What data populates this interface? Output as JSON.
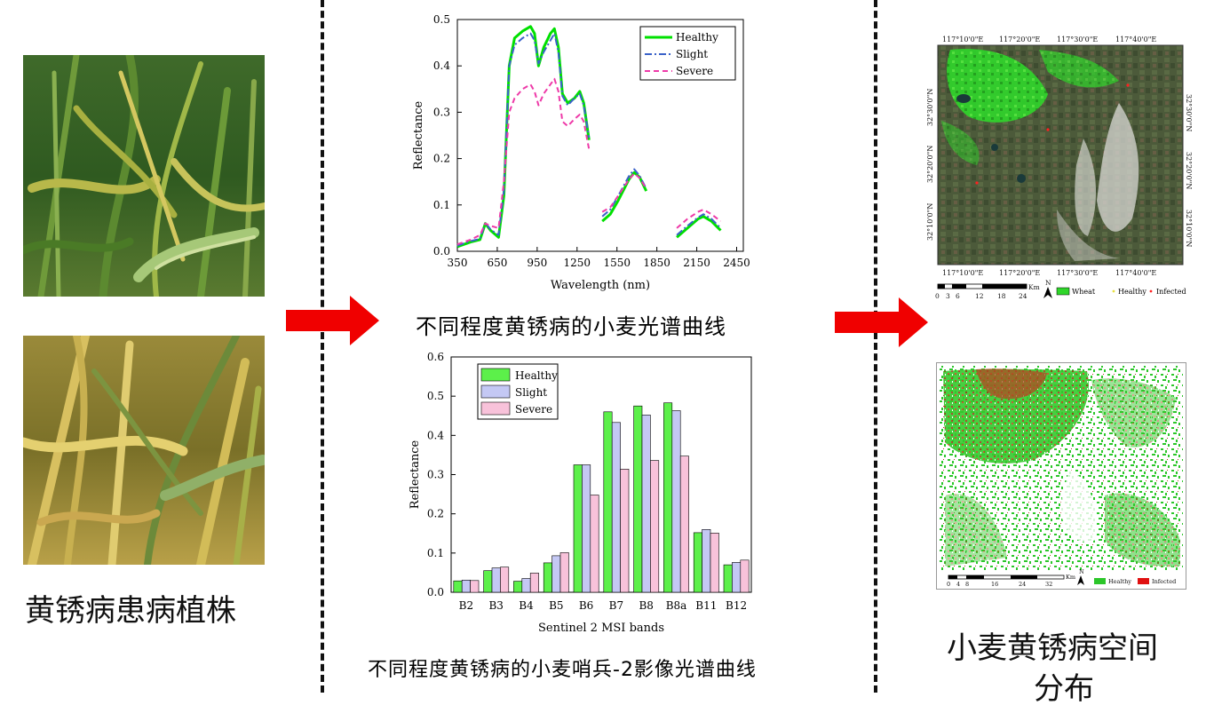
{
  "labels": {
    "left_caption": "黄锈病患病植株",
    "mid_top_caption": "不同程度黄锈病的小麦光谱曲线",
    "mid_bottom_caption": "不同程度黄锈病的小麦哨兵-2影像光谱曲线",
    "right_caption_line1": "小麦黄锈病空间",
    "right_caption_line2": "分布"
  },
  "colors": {
    "arrow": "#f00000",
    "healthy_line": "#00e000",
    "slight_line": "#3a62c9",
    "severe_line": "#ee3aa8",
    "healthy_bar": "#5cf04a",
    "slight_bar": "#c4c8f4",
    "severe_bar": "#f8c2da"
  },
  "chart_data": [
    {
      "type": "line",
      "xlabel": "Wavelength (nm)",
      "ylabel": "Reflectance",
      "xlim": [
        350,
        2500
      ],
      "ylim": [
        0.0,
        0.5
      ],
      "xticks": [
        "350",
        "650",
        "950",
        "1250",
        "1550",
        "1850",
        "2150",
        "2450"
      ],
      "yticks": [
        "0.0",
        "0.1",
        "0.2",
        "0.3",
        "0.4",
        "0.5"
      ],
      "legend_position": "top-right",
      "series": [
        {
          "name": "Healthy",
          "segments": [
            [
              [
                350,
                0.01
              ],
              [
                450,
                0.02
              ],
              [
                520,
                0.025
              ],
              [
                560,
                0.06
              ],
              [
                600,
                0.045
              ],
              [
                660,
                0.03
              ],
              [
                700,
                0.12
              ],
              [
                740,
                0.4
              ],
              [
                780,
                0.46
              ],
              [
                840,
                0.475
              ],
              [
                900,
                0.485
              ],
              [
                930,
                0.47
              ],
              [
                960,
                0.4
              ],
              [
                1000,
                0.44
              ],
              [
                1050,
                0.47
              ],
              [
                1080,
                0.48
              ],
              [
                1110,
                0.44
              ],
              [
                1140,
                0.34
              ],
              [
                1180,
                0.32
              ],
              [
                1230,
                0.33
              ],
              [
                1270,
                0.345
              ],
              [
                1300,
                0.32
              ],
              [
                1340,
                0.24
              ]
            ],
            [
              [
                1440,
                0.065
              ],
              [
                1500,
                0.08
              ],
              [
                1560,
                0.11
              ],
              [
                1640,
                0.155
              ],
              [
                1680,
                0.17
              ],
              [
                1720,
                0.16
              ],
              [
                1770,
                0.13
              ]
            ],
            [
              [
                2000,
                0.03
              ],
              [
                2080,
                0.05
              ],
              [
                2160,
                0.07
              ],
              [
                2200,
                0.075
              ],
              [
                2260,
                0.065
              ],
              [
                2330,
                0.045
              ]
            ]
          ]
        },
        {
          "name": "Slight",
          "segments": [
            [
              [
                350,
                0.012
              ],
              [
                450,
                0.022
              ],
              [
                520,
                0.027
              ],
              [
                560,
                0.062
              ],
              [
                600,
                0.047
              ],
              [
                660,
                0.035
              ],
              [
                700,
                0.13
              ],
              [
                740,
                0.4
              ],
              [
                780,
                0.445
              ],
              [
                840,
                0.46
              ],
              [
                900,
                0.47
              ],
              [
                930,
                0.455
              ],
              [
                960,
                0.405
              ],
              [
                1000,
                0.43
              ],
              [
                1050,
                0.455
              ],
              [
                1080,
                0.47
              ],
              [
                1110,
                0.43
              ],
              [
                1140,
                0.335
              ],
              [
                1180,
                0.315
              ],
              [
                1230,
                0.33
              ],
              [
                1270,
                0.34
              ],
              [
                1300,
                0.315
              ],
              [
                1340,
                0.245
              ]
            ],
            [
              [
                1440,
                0.075
              ],
              [
                1500,
                0.09
              ],
              [
                1560,
                0.12
              ],
              [
                1640,
                0.162
              ],
              [
                1680,
                0.177
              ],
              [
                1720,
                0.163
              ],
              [
                1770,
                0.135
              ]
            ],
            [
              [
                2000,
                0.035
              ],
              [
                2080,
                0.055
              ],
              [
                2160,
                0.073
              ],
              [
                2200,
                0.08
              ],
              [
                2260,
                0.07
              ],
              [
                2330,
                0.05
              ]
            ]
          ]
        },
        {
          "name": "Severe",
          "segments": [
            [
              [
                350,
                0.015
              ],
              [
                450,
                0.025
              ],
              [
                520,
                0.035
              ],
              [
                560,
                0.06
              ],
              [
                600,
                0.055
              ],
              [
                660,
                0.05
              ],
              [
                700,
                0.15
              ],
              [
                740,
                0.3
              ],
              [
                780,
                0.33
              ],
              [
                840,
                0.35
              ],
              [
                900,
                0.36
              ],
              [
                930,
                0.345
              ],
              [
                960,
                0.315
              ],
              [
                1000,
                0.34
              ],
              [
                1050,
                0.36
              ],
              [
                1080,
                0.372
              ],
              [
                1110,
                0.345
              ],
              [
                1140,
                0.28
              ],
              [
                1180,
                0.27
              ],
              [
                1230,
                0.285
              ],
              [
                1270,
                0.295
              ],
              [
                1300,
                0.28
              ],
              [
                1340,
                0.22
              ]
            ],
            [
              [
                1440,
                0.085
              ],
              [
                1500,
                0.095
              ],
              [
                1560,
                0.12
              ],
              [
                1640,
                0.155
              ],
              [
                1680,
                0.168
              ],
              [
                1720,
                0.158
              ],
              [
                1770,
                0.135
              ]
            ],
            [
              [
                2000,
                0.05
              ],
              [
                2080,
                0.07
              ],
              [
                2160,
                0.085
              ],
              [
                2200,
                0.09
              ],
              [
                2260,
                0.08
              ],
              [
                2330,
                0.065
              ]
            ]
          ]
        }
      ]
    },
    {
      "type": "bar",
      "xlabel": "Sentinel 2 MSI bands",
      "ylabel": "Reflectance",
      "ylim": [
        0.0,
        0.6
      ],
      "yticks": [
        "0.0",
        "0.1",
        "0.2",
        "0.3",
        "0.4",
        "0.5",
        "0.6"
      ],
      "legend_position": "top-left",
      "categories": [
        "B2",
        "B3",
        "B4",
        "B5",
        "B6",
        "B7",
        "B8",
        "B8a",
        "B11",
        "B12"
      ],
      "series": [
        {
          "name": "Healthy",
          "values": [
            0.029,
            0.055,
            0.028,
            0.075,
            0.325,
            0.46,
            0.475,
            0.483,
            0.152,
            0.07
          ]
        },
        {
          "name": "Slight",
          "values": [
            0.031,
            0.062,
            0.035,
            0.093,
            0.325,
            0.433,
            0.452,
            0.463,
            0.16,
            0.076
          ]
        },
        {
          "name": "Severe",
          "values": [
            0.03,
            0.064,
            0.049,
            0.101,
            0.248,
            0.314,
            0.336,
            0.347,
            0.151,
            0.082
          ]
        }
      ]
    }
  ],
  "map_top": {
    "top_ticks": [
      "117°10'0\"E",
      "117°20'0\"E",
      "117°30'0\"E",
      "117°40'0\"E"
    ],
    "bottom_ticks": [
      "117°10'0\"E",
      "117°20'0\"E",
      "117°30'0\"E",
      "117°40'0\"E"
    ],
    "left_ticks": [
      "32°30'0\"N",
      "32°20'0\"N",
      "32°10'0\"N"
    ],
    "right_ticks": [
      "32°30'0\"N",
      "32°20'0\"N",
      "32°10'0\"N"
    ],
    "scale_labels": [
      "0",
      "3",
      "6",
      "12",
      "18",
      "24"
    ],
    "scale_unit": "Km",
    "north": "N",
    "legend": [
      "Wheat",
      "Healthy",
      "Infected"
    ]
  },
  "map_bottom": {
    "scale_labels": [
      "0",
      "4",
      "8",
      "16",
      "24",
      "32"
    ],
    "scale_unit": "Km",
    "north": "N",
    "legend": [
      "Healthy",
      "Infected"
    ]
  }
}
